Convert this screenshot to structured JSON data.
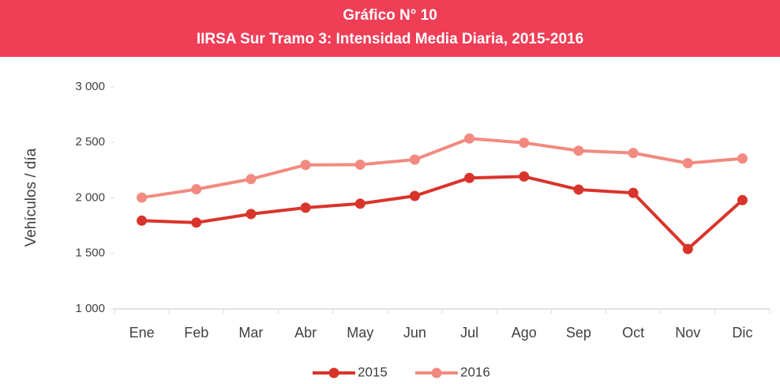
{
  "chart_data": {
    "type": "line",
    "title": "Gráfico N° 10",
    "subtitle": "IIRSA Sur Tramo 3: Intensidad Media Diaria, 2015-2016",
    "y_label": "Vehículos / día",
    "categories": [
      "Ene",
      "Feb",
      "Mar",
      "Abr",
      "May",
      "Jun",
      "Jul",
      "Ago",
      "Sep",
      "Oct",
      "Nov",
      "Dic"
    ],
    "series": [
      {
        "name": "2015",
        "color": "#d9342b",
        "values": [
          1795,
          1778,
          1855,
          1912,
          1948,
          2018,
          2180,
          2193,
          2075,
          2045,
          1540,
          1980
        ]
      },
      {
        "name": "2016",
        "color": "#f28a80",
        "values": [
          2003,
          2078,
          2170,
          2297,
          2300,
          2345,
          2535,
          2497,
          2425,
          2405,
          2313,
          2355
        ]
      }
    ],
    "ylim": [
      1000,
      3000
    ],
    "yticks": [
      {
        "value": 1000,
        "label": "1 000"
      },
      {
        "value": 1500,
        "label": "1 500"
      },
      {
        "value": 2000,
        "label": "2 000"
      },
      {
        "value": 2500,
        "label": "2 500"
      },
      {
        "value": 3000,
        "label": "3 000"
      }
    ],
    "grid": false,
    "legend": "bottom",
    "banner_color": "#ef3e56"
  }
}
